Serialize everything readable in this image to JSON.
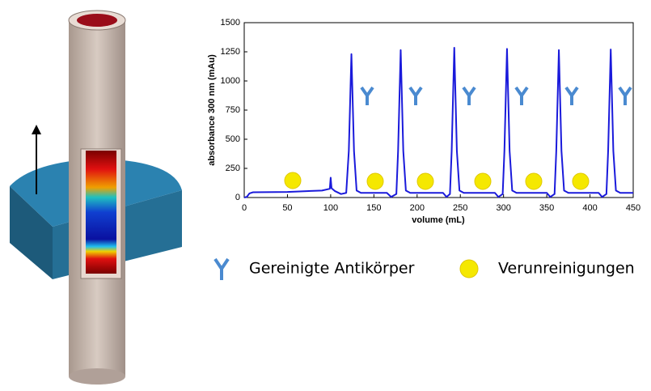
{
  "chart_data": {
    "type": "line",
    "xlabel": "volume (mL)",
    "ylabel": "absorbance 300 nm (mAu)",
    "xlim": [
      0,
      450
    ],
    "xticks": [
      0,
      50,
      100,
      150,
      200,
      250,
      300,
      350,
      400,
      450
    ],
    "ylim": [
      0,
      1500
    ],
    "yticks": [
      0,
      250,
      500,
      750,
      1000,
      1250,
      1500
    ],
    "legend_items": [
      "Gereinigte Antikörper",
      "Verunreinigungen"
    ],
    "series": [
      {
        "color": "#1a1adb",
        "x": [
          0,
          3,
          6,
          10,
          50,
          90,
          99,
          100,
          101,
          105,
          112,
          118,
          121,
          124,
          127,
          130,
          135,
          165,
          170,
          176,
          178,
          181,
          184,
          187,
          192,
          230,
          234,
          238,
          240,
          243,
          246,
          249,
          254,
          290,
          294,
          299,
          301,
          304,
          307,
          310,
          315,
          350,
          354,
          359,
          361,
          364,
          367,
          370,
          375,
          410,
          414,
          419,
          421,
          424,
          427,
          430,
          435,
          450
        ],
        "values": [
          0,
          5,
          35,
          45,
          48,
          60,
          75,
          170,
          80,
          55,
          30,
          40,
          400,
          1230,
          400,
          60,
          40,
          40,
          5,
          30,
          400,
          1265,
          400,
          60,
          40,
          40,
          5,
          30,
          400,
          1285,
          400,
          60,
          40,
          40,
          5,
          30,
          400,
          1275,
          400,
          60,
          40,
          40,
          5,
          30,
          400,
          1265,
          400,
          60,
          40,
          40,
          5,
          30,
          400,
          1270,
          400,
          60,
          40,
          40
        ]
      }
    ]
  }
}
